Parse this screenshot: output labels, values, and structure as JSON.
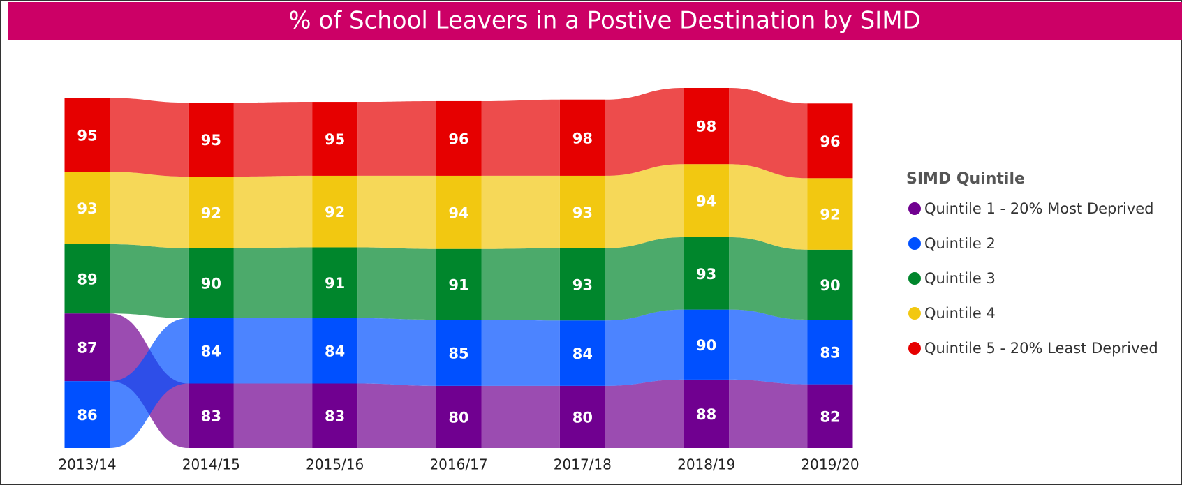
{
  "chart_data": {
    "type": "ribbon",
    "title": "% of School Leavers in a Postive Destination by SIMD",
    "legend_title": "SIMD Quintile",
    "legend": "right",
    "categories": [
      "2013/14",
      "2014/15",
      "2015/16",
      "2016/17",
      "2017/18",
      "2018/19",
      "2019/20"
    ],
    "series": [
      {
        "name": "Quintile 1 - 20% Most Deprived",
        "color": "#700090",
        "values": [
          87,
          83,
          83,
          80,
          80,
          88,
          82
        ]
      },
      {
        "name": "Quintile 2",
        "color": "#0050ff",
        "values": [
          86,
          84,
          84,
          85,
          84,
          90,
          83
        ]
      },
      {
        "name": "Quintile 3",
        "color": "#00862c",
        "values": [
          89,
          90,
          91,
          91,
          93,
          93,
          90
        ]
      },
      {
        "name": "Quintile 4",
        "color": "#f2c811",
        "values": [
          93,
          92,
          92,
          94,
          93,
          94,
          92
        ]
      },
      {
        "name": "Quintile 5 - 20% Least Deprived",
        "color": "#e60000",
        "values": [
          95,
          95,
          95,
          96,
          98,
          98,
          96
        ]
      }
    ]
  }
}
